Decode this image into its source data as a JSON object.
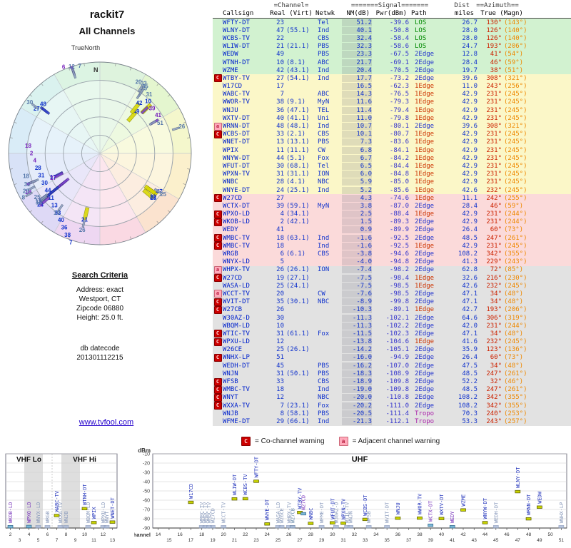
{
  "report": {
    "title": "rackit7",
    "subtitle": "All Channels",
    "true_north_label": "TrueNorth",
    "north_label": "N"
  },
  "search_criteria": {
    "heading": "Search Criteria",
    "lines": [
      "Address: exact",
      "Westport, CT",
      "Zipcode 06880",
      "Height: 25.0 ft."
    ],
    "datecode_label": "db datecode",
    "datecode": "201301112215"
  },
  "link": "www.tvfool.com",
  "legend": {
    "co_mark": "C",
    "co_text": "= Co-channel warning",
    "adj_mark": "a",
    "adj_text": "= Adjacent channel warning"
  },
  "table": {
    "group": {
      "channel": "=Channel=",
      "signal": "=======Signal=======",
      "dist": "Dist",
      "azimuth": "==Azimuth=="
    },
    "columns": [
      "Callsign",
      "Real (Virt)",
      "Netwk",
      "NM(dB)",
      "Pwr(dBm)",
      "Path",
      "miles",
      "True (Magn)"
    ],
    "row_fields": [
      "warning",
      "callsign",
      "real",
      "virt",
      "netwk",
      "nm_db",
      "pwr_dbm",
      "path",
      "miles",
      "az_true",
      "az_magn",
      "band"
    ],
    "rows": [
      [
        "",
        "WFTY-DT",
        "23",
        "",
        "Tel",
        "51.2",
        "-39.6",
        "LOS",
        "26.7",
        "130°",
        "(143°)",
        "green"
      ],
      [
        "",
        "WLNY-DT",
        "47",
        "(55.1)",
        "Ind",
        "40.1",
        "-50.8",
        "LOS",
        "28.0",
        "126°",
        "(140°)",
        "green"
      ],
      [
        "",
        "WCBS-TV",
        "22",
        "",
        "CBS",
        "32.4",
        "-58.4",
        "LOS",
        "28.0",
        "126°",
        "(140°)",
        "green"
      ],
      [
        "",
        "WLIW-DT",
        "21",
        "(21.1)",
        "PBS",
        "32.3",
        "-58.6",
        "LOS",
        "24.7",
        "193°",
        "(206°)",
        "green"
      ],
      [
        "",
        "WEDW",
        "49",
        "",
        "PBS",
        "23.3",
        "-67.5",
        "2Edge",
        "12.8",
        "41°",
        "(54°)",
        "green"
      ],
      [
        "",
        "WTNH-DT",
        "10",
        "(8.1)",
        "ABC",
        "21.7",
        "-69.1",
        "2Edge",
        "28.4",
        "46°",
        "(59°)",
        "green"
      ],
      [
        "",
        "WZME",
        "42",
        "(43.1)",
        "Ind",
        "20.4",
        "-70.5",
        "2Edge",
        "19.7",
        "38°",
        "(51°)",
        "green"
      ],
      [
        "C",
        "WTBY-TV",
        "27",
        "(54.1)",
        "Ind",
        "17.7",
        "-73.2",
        "2Edge",
        "39.6",
        "308°",
        "(321°)",
        "yellow"
      ],
      [
        "",
        "W17CD",
        "17",
        "",
        "",
        "16.5",
        "-62.3",
        "1Edge",
        "11.0",
        "243°",
        "(256°)",
        "yellow"
      ],
      [
        "",
        "WABC-TV",
        "7",
        "",
        "ABC",
        "14.3",
        "-76.5",
        "1Edge",
        "42.9",
        "231°",
        "(245°)",
        "yellow"
      ],
      [
        "",
        "WWOR-TV",
        "38",
        "(9.1)",
        "MyN",
        "11.6",
        "-79.3",
        "1Edge",
        "42.9",
        "231°",
        "(245°)",
        "yellow"
      ],
      [
        "",
        "WNJU",
        "36",
        "(47.1)",
        "TEL",
        "11.4",
        "-79.4",
        "1Edge",
        "42.9",
        "231°",
        "(245°)",
        "yellow"
      ],
      [
        "",
        "WXTV-DT",
        "40",
        "(41.1)",
        "Uni",
        "11.0",
        "-79.8",
        "1Edge",
        "42.9",
        "231°",
        "(245°)",
        "yellow"
      ],
      [
        "a",
        "WRNN-DT",
        "48",
        "(48.1)",
        "Ind",
        "10.7",
        "-80.1",
        "2Edge",
        "39.6",
        "308°",
        "(321°)",
        "yellow"
      ],
      [
        "C",
        "WCBS-DT",
        "33",
        "(2.1)",
        "CBS",
        "10.1",
        "-80.7",
        "1Edge",
        "42.9",
        "231°",
        "(245°)",
        "yellow"
      ],
      [
        "",
        "WNET-DT",
        "13",
        "(13.1)",
        "PBS",
        "7.3",
        "-83.6",
        "1Edge",
        "42.9",
        "231°",
        "(245°)",
        "yellow"
      ],
      [
        "",
        "WPIX",
        "11",
        "(11.1)",
        "CW",
        "6.8",
        "-84.1",
        "1Edge",
        "42.9",
        "231°",
        "(245°)",
        "yellow"
      ],
      [
        "",
        "WNYW-DT",
        "44",
        "(5.1)",
        "Fox",
        "6.7",
        "-84.2",
        "1Edge",
        "42.9",
        "231°",
        "(245°)",
        "yellow"
      ],
      [
        "",
        "WFUT-DT",
        "30",
        "(68.1)",
        "Tel",
        "6.5",
        "-84.4",
        "1Edge",
        "42.9",
        "231°",
        "(245°)",
        "yellow"
      ],
      [
        "",
        "WPXN-TV",
        "31",
        "(31.1)",
        "ION",
        "6.0",
        "-84.8",
        "1Edge",
        "42.9",
        "231°",
        "(245°)",
        "yellow"
      ],
      [
        "",
        "WNBC",
        "28",
        "(4.1)",
        "NBC",
        "5.9",
        "-85.0",
        "1Edge",
        "42.9",
        "231°",
        "(245°)",
        "yellow"
      ],
      [
        "",
        "WNYE-DT",
        "24",
        "(25.1)",
        "Ind",
        "5.2",
        "-85.6",
        "1Edge",
        "42.6",
        "232°",
        "(245°)",
        "yellow"
      ],
      [
        "C",
        "W27CD",
        "27",
        "",
        "",
        "4.3",
        "-74.6",
        "1Edge",
        "11.1",
        "242°",
        "(255°)",
        "pink"
      ],
      [
        "",
        "WCTX-DT",
        "39",
        "(59.1)",
        "MyN",
        "3.8",
        "-87.0",
        "2Edge",
        "28.4",
        "46°",
        "(59°)",
        "pink"
      ],
      [
        "C",
        "WPXO-LD",
        "4",
        "(34.1)",
        "",
        "2.5",
        "-88.4",
        "1Edge",
        "42.9",
        "231°",
        "(244°)",
        "pink"
      ],
      [
        "C",
        "WKOB-LD",
        "2",
        "(42.1)",
        "",
        "1.5",
        "-89.3",
        "2Edge",
        "42.9",
        "231°",
        "(244°)",
        "pink"
      ],
      [
        "",
        "WEDY",
        "41",
        "",
        "",
        "0.9",
        "-89.9",
        "2Edge",
        "26.4",
        "60°",
        "(73°)",
        "pink"
      ],
      [
        "C",
        "WMBC-TV",
        "18",
        "(63.1)",
        "Ind",
        "-1.6",
        "-92.5",
        "2Edge",
        "48.5",
        "247°",
        "(261°)",
        "pink"
      ],
      [
        "C",
        "WMBC-TV",
        "18",
        "",
        "Ind",
        "-1.6",
        "-92.5",
        "1Edge",
        "42.9",
        "231°",
        "(245°)",
        "pink"
      ],
      [
        "",
        "WRGB",
        "6",
        "(6.1)",
        "CBS",
        "-3.8",
        "-94.6",
        "2Edge",
        "108.2",
        "342°",
        "(355°)",
        "pink"
      ],
      [
        "",
        "WNYX-LD",
        "5",
        "",
        "",
        "-4.0",
        "-94.8",
        "2Edge",
        "41.3",
        "229°",
        "(243°)",
        "pink"
      ],
      [
        "a",
        "WHPX-TV",
        "26",
        "(26.1)",
        "ION",
        "-7.4",
        "-98.2",
        "2Edge",
        "62.8",
        "72°",
        "(85°)",
        "gray"
      ],
      [
        "C",
        "W27CD",
        "19",
        "(27.1)",
        "",
        "-7.5",
        "-98.4",
        "1Edge",
        "32.6",
        "216°",
        "(230°)",
        "gray"
      ],
      [
        "",
        "WASA-LD",
        "25",
        "(24.1)",
        "",
        "-7.5",
        "-98.5",
        "1Edge",
        "42.6",
        "232°",
        "(245°)",
        "gray"
      ],
      [
        "a",
        "WCCT-TV",
        "20",
        "",
        "CW",
        "-7.6",
        "-98.5",
        "2Edge",
        "47.1",
        "34°",
        "(48°)",
        "gray"
      ],
      [
        "C",
        "WVIT-DT",
        "35",
        "(30.1)",
        "NBC",
        "-8.9",
        "-99.8",
        "2Edge",
        "47.1",
        "34°",
        "(48°)",
        "gray"
      ],
      [
        "C",
        "W27CB",
        "26",
        "",
        "",
        "-10.3",
        "-89.1",
        "1Edge",
        "42.7",
        "193°",
        "(206°)",
        "gray"
      ],
      [
        "",
        "W30AZ-D",
        "30",
        "",
        "",
        "-11.3",
        "-102.1",
        "2Edge",
        "64.6",
        "306°",
        "(319°)",
        "gray"
      ],
      [
        "",
        "WBQM-LD",
        "10",
        "",
        "",
        "-11.3",
        "-102.2",
        "2Edge",
        "42.0",
        "231°",
        "(244°)",
        "gray"
      ],
      [
        "C",
        "WTIC-TV",
        "31",
        "(61.1)",
        "Fox",
        "-11.5",
        "-102.3",
        "2Edge",
        "47.1",
        "34°",
        "(48°)",
        "gray"
      ],
      [
        "C",
        "WPXU-LD",
        "12",
        "",
        "",
        "-13.8",
        "-104.6",
        "1Edge",
        "41.6",
        "232°",
        "(245°)",
        "gray"
      ],
      [
        "",
        "W26CE",
        "25",
        "(26.1)",
        "",
        "-14.2",
        "-105.1",
        "2Edge",
        "35.9",
        "123°",
        "(136°)",
        "gray"
      ],
      [
        "C",
        "WNHX-LP",
        "51",
        "",
        "",
        "-16.0",
        "-94.9",
        "2Edge",
        "26.4",
        "60°",
        "(73°)",
        "gray"
      ],
      [
        "",
        "WEDH-DT",
        "45",
        "",
        "PBS",
        "-16.2",
        "-107.0",
        "2Edge",
        "47.5",
        "34°",
        "(48°)",
        "gray"
      ],
      [
        "",
        "WNJN",
        "31",
        "(50.1)",
        "PBS",
        "-18.3",
        "-108.9",
        "2Edge",
        "48.5",
        "247°",
        "(261°)",
        "gray"
      ],
      [
        "C",
        "WFSB",
        "33",
        "",
        "CBS",
        "-18.9",
        "-109.8",
        "2Edge",
        "52.2",
        "32°",
        "(46°)",
        "gray"
      ],
      [
        "C",
        "WMBC-TV",
        "18",
        "",
        "Ind",
        "-19.0",
        "-109.8",
        "2Edge",
        "48.5",
        "247°",
        "(261°)",
        "gray"
      ],
      [
        "C",
        "WNYT",
        "12",
        "",
        "NBC",
        "-20.0",
        "-110.8",
        "2Edge",
        "108.2",
        "342°",
        "(355°)",
        "gray"
      ],
      [
        "C",
        "WXXA-TV",
        "7",
        "(23.1)",
        "Fox",
        "-20.2",
        "-111.0",
        "2Edge",
        "108.2",
        "342°",
        "(355°)",
        "gray"
      ],
      [
        "",
        "WNJB",
        "8",
        "(58.1)",
        "PBS",
        "-20.5",
        "-111.4",
        "Tropo",
        "70.3",
        "240°",
        "(253°)",
        "gray"
      ],
      [
        "",
        "WFME-DT",
        "29",
        "(66.1)",
        "Ind",
        "-21.3",
        "-112.1",
        "Tropo",
        "53.3",
        "243°",
        "(257°)",
        "gray"
      ]
    ]
  },
  "chart_data": {
    "type": "scatter",
    "title": "",
    "xlabel": "Channel",
    "ylabel": "dBm",
    "ylim": [
      -90,
      -10
    ],
    "dbm_ticks": [
      -10,
      -20,
      -30,
      -40,
      -50,
      -60,
      -70,
      -80,
      -90
    ],
    "panels": [
      {
        "id": "vhf",
        "titles": [
          "VHF Lo",
          "VHF Hi"
        ],
        "channel_range": [
          2,
          13
        ],
        "shaded_bands": [
          [
            3.5,
            5.5
          ],
          [
            7.5,
            9.5
          ]
        ]
      },
      {
        "id": "uhf",
        "titles": [
          "UHF"
        ],
        "channel_range": [
          14,
          51
        ],
        "shaded_bands": []
      }
    ],
    "vhf_channels": [
      2,
      3,
      4,
      5,
      6,
      7,
      8,
      9,
      10,
      11,
      12,
      13
    ],
    "uhf_channels": [
      14,
      15,
      16,
      17,
      18,
      19,
      20,
      21,
      22,
      23,
      24,
      25,
      26,
      27,
      28,
      29,
      30,
      31,
      32,
      33,
      34,
      35,
      36,
      37,
      38,
      39,
      40,
      41,
      42,
      43,
      44,
      45,
      46,
      47,
      48,
      49,
      50,
      51
    ],
    "station_fields": [
      "callsign",
      "channel",
      "dbm",
      "band"
    ],
    "stations": [
      [
        "WFTY-DT",
        23,
        -39.6,
        "green"
      ],
      [
        "WLNY-DT",
        47,
        -50.8,
        "green"
      ],
      [
        "WCBS-TV",
        22,
        -58.4,
        "green"
      ],
      [
        "WLIW-DT",
        21,
        -58.6,
        "green"
      ],
      [
        "WEDW",
        49,
        -67.5,
        "green"
      ],
      [
        "WTNH-DT",
        10,
        -69.1,
        "green"
      ],
      [
        "WZME",
        42,
        -70.5,
        "green"
      ],
      [
        "WTBY-TV",
        27,
        -73.2,
        "yellow"
      ],
      [
        "W17CD",
        17,
        -62.3,
        "yellow"
      ],
      [
        "WABC-TV",
        7,
        -76.5,
        "yellow"
      ],
      [
        "WWOR-TV",
        38,
        -79.3,
        "yellow"
      ],
      [
        "WNJU",
        36,
        -79.4,
        "yellow"
      ],
      [
        "WXTV-DT",
        40,
        -79.8,
        "yellow"
      ],
      [
        "WRNN-DT",
        48,
        -80.1,
        "yellow"
      ],
      [
        "WCBS-DT",
        33,
        -80.7,
        "yellow"
      ],
      [
        "WNET-DT",
        13,
        -83.6,
        "yellow"
      ],
      [
        "WPIX",
        11,
        -84.1,
        "yellow"
      ],
      [
        "WNYW-DT",
        44,
        -84.2,
        "yellow"
      ],
      [
        "WFUT-DT",
        30,
        -84.4,
        "yellow"
      ],
      [
        "WPXN-TV",
        31,
        -84.8,
        "yellow"
      ],
      [
        "WNBC",
        28,
        -85.0,
        "yellow"
      ],
      [
        "WNYE-DT",
        24,
        -85.6,
        "yellow"
      ],
      [
        "W27CD",
        27,
        -74.6,
        "pink"
      ],
      [
        "WCTX-DT",
        39,
        -87.0,
        "pink"
      ],
      [
        "WPXO-LD",
        4,
        -88.4,
        "pink"
      ],
      [
        "WKOB-LD",
        2,
        -89.3,
        "pink"
      ],
      [
        "WEDY",
        41,
        -89.9,
        "pink"
      ],
      [
        "WMBC-TV",
        18,
        -92.5,
        "pink"
      ],
      [
        "WMBC-TV",
        18,
        -92.5,
        "pink"
      ],
      [
        "WRGB",
        6,
        -94.6,
        "pink"
      ],
      [
        "WNYX-LD",
        5,
        -94.8,
        "pink"
      ],
      [
        "WHPX-TV",
        26,
        -98.2,
        "gray"
      ],
      [
        "W27CD",
        19,
        -98.4,
        "gray"
      ],
      [
        "WASA-LD",
        25,
        -98.5,
        "gray"
      ],
      [
        "WCCT-TV",
        20,
        -98.5,
        "gray"
      ],
      [
        "WVIT-DT",
        35,
        -99.8,
        "gray"
      ],
      [
        "W27CB",
        26,
        -89.1,
        "gray"
      ],
      [
        "W30AZ-D",
        30,
        -102.1,
        "gray"
      ],
      [
        "WBQM-LD",
        10,
        -102.2,
        "gray"
      ],
      [
        "WTIC-TV",
        31,
        -102.3,
        "gray"
      ],
      [
        "WPXU-LD",
        12,
        -104.6,
        "gray"
      ],
      [
        "W26CE",
        25,
        -105.1,
        "gray"
      ],
      [
        "WNHX-LP",
        51,
        -94.9,
        "gray"
      ],
      [
        "WEDH-DT",
        45,
        -107.0,
        "gray"
      ],
      [
        "WNJN",
        31,
        -108.9,
        "gray"
      ],
      [
        "WFSB",
        33,
        -109.8,
        "gray"
      ],
      [
        "WMBC-TV",
        18,
        -109.8,
        "gray"
      ],
      [
        "WNYT",
        12,
        -110.8,
        "gray"
      ],
      [
        "WXXA-TV",
        7,
        -111.0,
        "gray"
      ],
      [
        "WNJB",
        8,
        -111.4,
        "gray"
      ],
      [
        "WFME-DT",
        29,
        -112.1,
        "gray"
      ]
    ]
  }
}
